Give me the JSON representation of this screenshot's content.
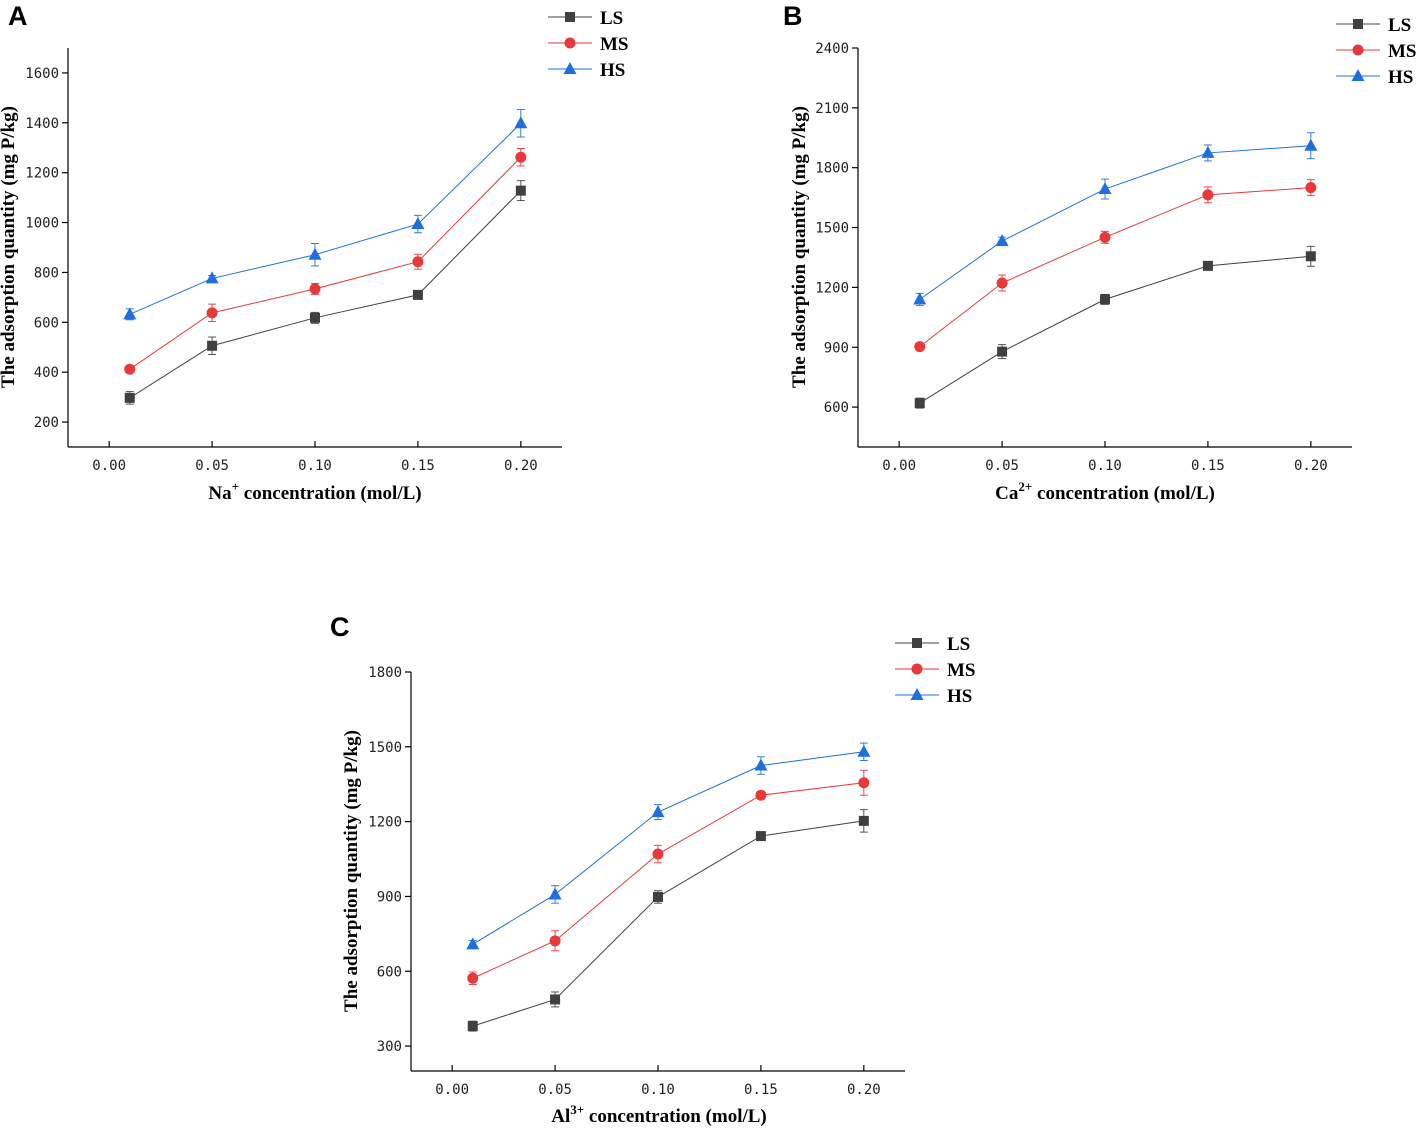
{
  "series_styles": [
    {
      "name": "LS",
      "color": "#404040",
      "marker": "square"
    },
    {
      "name": "MS",
      "color": "#e8393a",
      "marker": "circle"
    },
    {
      "name": "HS",
      "color": "#1f6fdc",
      "marker": "triangle"
    }
  ],
  "chart_data": [
    {
      "panel": "A",
      "type": "line",
      "x": [
        0.01,
        0.05,
        0.1,
        0.15,
        0.2
      ],
      "xlabel": {
        "base": "Na",
        "sup": "+",
        "rest": " concentration (mol/L)"
      },
      "ylabel": "The adsorption quantity (mg P/kg)",
      "xlim": [
        -0.02,
        0.22
      ],
      "ylim": [
        100,
        1700
      ],
      "xticks": [
        0.0,
        0.05,
        0.1,
        0.15,
        0.2
      ],
      "xtick_labels": [
        "0.00",
        "0.05",
        "0.10",
        "0.15",
        "0.20"
      ],
      "yticks": [
        200,
        400,
        600,
        800,
        1000,
        1200,
        1400,
        1600
      ],
      "ytick_labels": [
        "200",
        "400",
        "600",
        "800",
        "1000",
        "1200",
        "1400",
        "1600"
      ],
      "legend_position": "top-right",
      "series": [
        {
          "name": "LS",
          "values": [
            297,
            506,
            618,
            710,
            1128
          ],
          "errors": [
            25,
            35,
            22,
            12,
            40
          ]
        },
        {
          "name": "MS",
          "values": [
            412,
            638,
            734,
            843,
            1262
          ],
          "errors": [
            10,
            35,
            22,
            30,
            35
          ]
        },
        {
          "name": "HS",
          "values": [
            632,
            776,
            871,
            994,
            1398
          ],
          "errors": [
            22,
            12,
            45,
            35,
            55
          ]
        }
      ]
    },
    {
      "panel": "B",
      "type": "line",
      "x": [
        0.01,
        0.05,
        0.1,
        0.15,
        0.2
      ],
      "xlabel": {
        "base": "Ca",
        "sup": "2+",
        "rest": " concentration (mol/L)"
      },
      "ylabel": "The adsorption quantity (mg P/kg)",
      "xlim": [
        -0.02,
        0.22
      ],
      "ylim": [
        400,
        2400
      ],
      "xticks": [
        0.0,
        0.05,
        0.1,
        0.15,
        0.2
      ],
      "xtick_labels": [
        "0.00",
        "0.05",
        "0.10",
        "0.15",
        "0.20"
      ],
      "yticks": [
        600,
        900,
        1200,
        1500,
        1800,
        2100,
        2400
      ],
      "ytick_labels": [
        "600",
        "900",
        "1200",
        "1500",
        "1800",
        "2100",
        "2400"
      ],
      "legend_position": "top-right",
      "series": [
        {
          "name": "LS",
          "values": [
            620,
            878,
            1140,
            1308,
            1356
          ],
          "errors": [
            25,
            35,
            25,
            15,
            50
          ]
        },
        {
          "name": "MS",
          "values": [
            903,
            1222,
            1451,
            1664,
            1700
          ],
          "errors": [
            15,
            40,
            30,
            40,
            40
          ]
        },
        {
          "name": "HS",
          "values": [
            1140,
            1432,
            1693,
            1874,
            1910
          ],
          "errors": [
            30,
            20,
            50,
            40,
            65
          ]
        }
      ]
    },
    {
      "panel": "C",
      "type": "line",
      "x": [
        0.01,
        0.05,
        0.1,
        0.15,
        0.2
      ],
      "xlabel": {
        "base": "Al",
        "sup": "3+",
        "rest": " concentration (mol/L)"
      },
      "ylabel": "The adsorption quantity (mg P/kg)",
      "xlim": [
        -0.02,
        0.22
      ],
      "ylim": [
        200,
        1800
      ],
      "xticks": [
        0.0,
        0.05,
        0.1,
        0.15,
        0.2
      ],
      "xtick_labels": [
        "0.00",
        "0.05",
        "0.10",
        "0.15",
        "0.20"
      ],
      "yticks": [
        300,
        600,
        900,
        1200,
        1500,
        1800
      ],
      "ytick_labels": [
        "300",
        "600",
        "900",
        "1200",
        "1500",
        "1800"
      ],
      "legend_position": "top-right",
      "series": [
        {
          "name": "LS",
          "values": [
            380,
            487,
            898,
            1142,
            1203
          ],
          "errors": [
            20,
            30,
            25,
            15,
            45
          ]
        },
        {
          "name": "MS",
          "values": [
            572,
            722,
            1070,
            1306,
            1356
          ],
          "errors": [
            25,
            40,
            35,
            15,
            50
          ]
        },
        {
          "name": "HS",
          "values": [
            708,
            908,
            1238,
            1425,
            1480
          ],
          "errors": [
            15,
            35,
            30,
            35,
            35
          ]
        }
      ]
    }
  ]
}
